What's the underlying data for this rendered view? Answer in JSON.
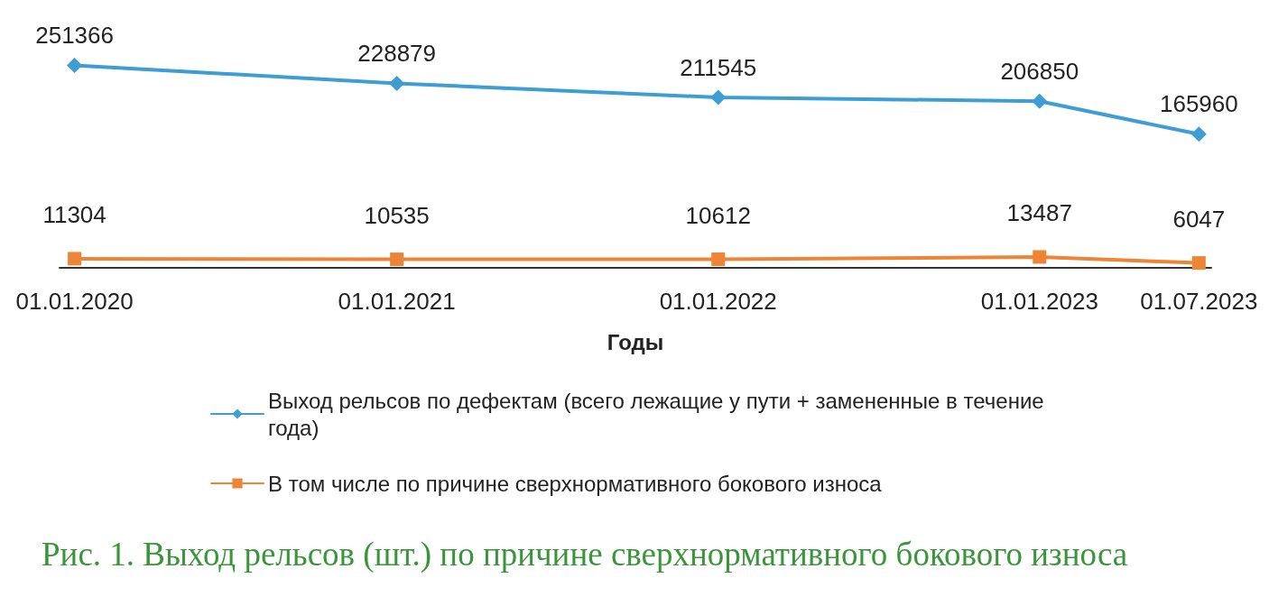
{
  "chart_data": {
    "type": "line",
    "x": [
      "2020-01-01",
      "2021-01-01",
      "2022-01-01",
      "2023-01-01",
      "2023-07-01"
    ],
    "xlim": [
      "2019-12-15",
      "2023-07-15"
    ],
    "xticks": [
      {
        "value": "2020-01-01",
        "label": "01.01.2020"
      },
      {
        "value": "2021-01-01",
        "label": "01.01.2021"
      },
      {
        "value": "2022-01-01",
        "label": "01.01.2022"
      },
      {
        "value": "2023-01-01",
        "label": "01.01.2023"
      },
      {
        "value": "2023-07-01",
        "label": "01.07.2023"
      }
    ],
    "xlabel": "Годы",
    "series": [
      {
        "name": "Выход рельсов по дефектам (всего лежащие у пути + замененные в течение года)",
        "color": "#3e9dd3",
        "marker": "diamond",
        "values": [
          251366,
          228879,
          211545,
          206850,
          165960
        ]
      },
      {
        "name": "В том числе по причине сверхнормативного бокового износа",
        "color": "#ee8536",
        "marker": "square",
        "values": [
          11304,
          10535,
          10612,
          13487,
          6047
        ]
      }
    ],
    "data_labels": true,
    "tick_labels": "x",
    "grid": false,
    "legend": "bottom",
    "annotations": [
      "Рис. 1. Выход рельсов (шт.) по причине сверхнормативного бокового износа"
    ]
  }
}
